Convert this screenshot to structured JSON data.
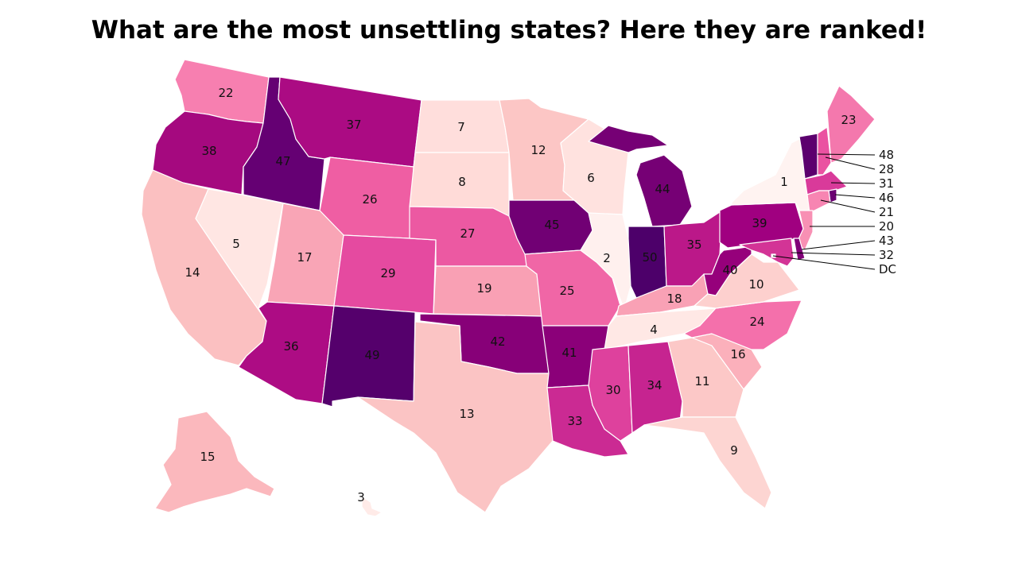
{
  "title": "What are the most unsettling states? Here they are ranked!",
  "color_scale": {
    "low": "#fff0ee",
    "mid": "#f06aa8",
    "high": "#520066"
  },
  "states": [
    {
      "id": "WA",
      "rank": "22",
      "color": "#f77fb0"
    },
    {
      "id": "OR",
      "rank": "38",
      "color": "#a5097f"
    },
    {
      "id": "CA",
      "rank": "14",
      "color": "#fbc0c1"
    },
    {
      "id": "ID",
      "rank": "47",
      "color": "#650073"
    },
    {
      "id": "NV",
      "rank": "5",
      "color": "#ffe6e3"
    },
    {
      "id": "MT",
      "rank": "37",
      "color": "#ab0b83"
    },
    {
      "id": "WY",
      "rank": "26",
      "color": "#ef5ea3"
    },
    {
      "id": "UT",
      "rank": "17",
      "color": "#f9a5b6"
    },
    {
      "id": "AZ",
      "rank": "36",
      "color": "#ad0c84"
    },
    {
      "id": "CO",
      "rank": "29",
      "color": "#e54aa0"
    },
    {
      "id": "NM",
      "rank": "49",
      "color": "#55006c"
    },
    {
      "id": "ND",
      "rank": "7",
      "color": "#ffdedc"
    },
    {
      "id": "SD",
      "rank": "8",
      "color": "#ffdbd8"
    },
    {
      "id": "NE",
      "rank": "27",
      "color": "#ec59a2"
    },
    {
      "id": "KS",
      "rank": "19",
      "color": "#f9a0b4"
    },
    {
      "id": "OK",
      "rank": "42",
      "color": "#870078"
    },
    {
      "id": "TX",
      "rank": "13",
      "color": "#fbc4c4"
    },
    {
      "id": "MN",
      "rank": "12",
      "color": "#fcc6c5"
    },
    {
      "id": "IA",
      "rank": "45",
      "color": "#710074"
    },
    {
      "id": "MO",
      "rank": "25",
      "color": "#f066a6"
    },
    {
      "id": "AR",
      "rank": "41",
      "color": "#8b0079"
    },
    {
      "id": "LA",
      "rank": "33",
      "color": "#cb2a93"
    },
    {
      "id": "WI",
      "rank": "6",
      "color": "#ffe2df"
    },
    {
      "id": "IL",
      "rank": "2",
      "color": "#fff0ee"
    },
    {
      "id": "MI",
      "rank": "44",
      "color": "#760075"
    },
    {
      "id": "IN",
      "rank": "50",
      "color": "#4d006a"
    },
    {
      "id": "OH",
      "rank": "35",
      "color": "#bb1889"
    },
    {
      "id": "KY",
      "rank": "18",
      "color": "#f9a1b5"
    },
    {
      "id": "TN",
      "rank": "4",
      "color": "#ffe8e5"
    },
    {
      "id": "MS",
      "rank": "30",
      "color": "#de419d"
    },
    {
      "id": "AL",
      "rank": "34",
      "color": "#c62490"
    },
    {
      "id": "GA",
      "rank": "11",
      "color": "#fcc8c7"
    },
    {
      "id": "FL",
      "rank": "9",
      "color": "#fdd5d2"
    },
    {
      "id": "SC",
      "rank": "16",
      "color": "#fbb0bb"
    },
    {
      "id": "NC",
      "rank": "24",
      "color": "#f470ab"
    },
    {
      "id": "VA",
      "rank": "10",
      "color": "#fdd0ce"
    },
    {
      "id": "WV",
      "rank": "40",
      "color": "#96007b"
    },
    {
      "id": "PA",
      "rank": "39",
      "color": "#a00080"
    },
    {
      "id": "NY",
      "rank": "1",
      "color": "#fff3f1"
    },
    {
      "id": "ME",
      "rank": "23",
      "color": "#f478ad"
    },
    {
      "id": "AK",
      "rank": "15",
      "color": "#fbb8bd"
    },
    {
      "id": "HI",
      "rank": "3",
      "color": "#ffebe8"
    },
    {
      "id": "VT",
      "rank": "48",
      "color": "#5c006e"
    },
    {
      "id": "NH",
      "rank": "28",
      "color": "#ea52a1"
    },
    {
      "id": "MA",
      "rank": "31",
      "color": "#d93a9a"
    },
    {
      "id": "RI",
      "rank": "46",
      "color": "#6b0072"
    },
    {
      "id": "CT",
      "rank": "21",
      "color": "#f785b2"
    },
    {
      "id": "NJ",
      "rank": "20",
      "color": "#f890b4"
    },
    {
      "id": "DE",
      "rank": "43",
      "color": "#800077"
    },
    {
      "id": "MD",
      "rank": "32",
      "color": "#d33496"
    },
    {
      "id": "DC",
      "rank": "",
      "color": "#ffffff"
    }
  ],
  "callouts": [
    {
      "state": "VT",
      "label": "48"
    },
    {
      "state": "NH",
      "label": "28"
    },
    {
      "state": "MA",
      "label": "31"
    },
    {
      "state": "RI",
      "label": "46"
    },
    {
      "state": "CT",
      "label": "21"
    },
    {
      "state": "NJ",
      "label": "20"
    },
    {
      "state": "DE",
      "label": "43"
    },
    {
      "state": "MD",
      "label": "32"
    },
    {
      "state": "DC",
      "label": "DC"
    }
  ]
}
